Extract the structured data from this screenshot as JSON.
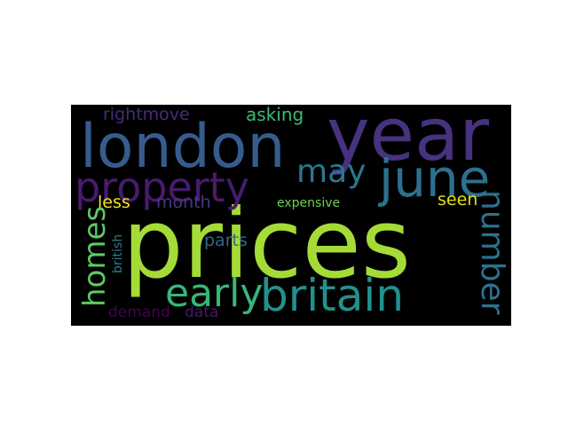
{
  "wordcloud": {
    "background": "#000000",
    "words": [
      {
        "text": "prices",
        "color": "#a5db36"
      },
      {
        "text": "year",
        "color": "#46327e"
      },
      {
        "text": "london",
        "color": "#365c8d"
      },
      {
        "text": "june",
        "color": "#2d708e"
      },
      {
        "text": "property",
        "color": "#481b6d"
      },
      {
        "text": "britain",
        "color": "#21918c"
      },
      {
        "text": "early",
        "color": "#35b779"
      },
      {
        "text": "number",
        "color": "#2c728e"
      },
      {
        "text": "homes",
        "color": "#5ec962"
      },
      {
        "text": "may",
        "color": "#2a788e"
      },
      {
        "text": "rightmove",
        "color": "#472c7a"
      },
      {
        "text": "asking",
        "color": "#3bbb75"
      },
      {
        "text": "month",
        "color": "#443983"
      },
      {
        "text": "less",
        "color": "#f1e51d"
      },
      {
        "text": "seen",
        "color": "#dde318"
      },
      {
        "text": "expensive",
        "color": "#6ccd5a"
      },
      {
        "text": "parts",
        "color": "#31688e"
      },
      {
        "text": "british",
        "color": "#27808e"
      },
      {
        "text": "demand",
        "color": "#440154"
      },
      {
        "text": "data",
        "color": "#48186a"
      }
    ]
  }
}
